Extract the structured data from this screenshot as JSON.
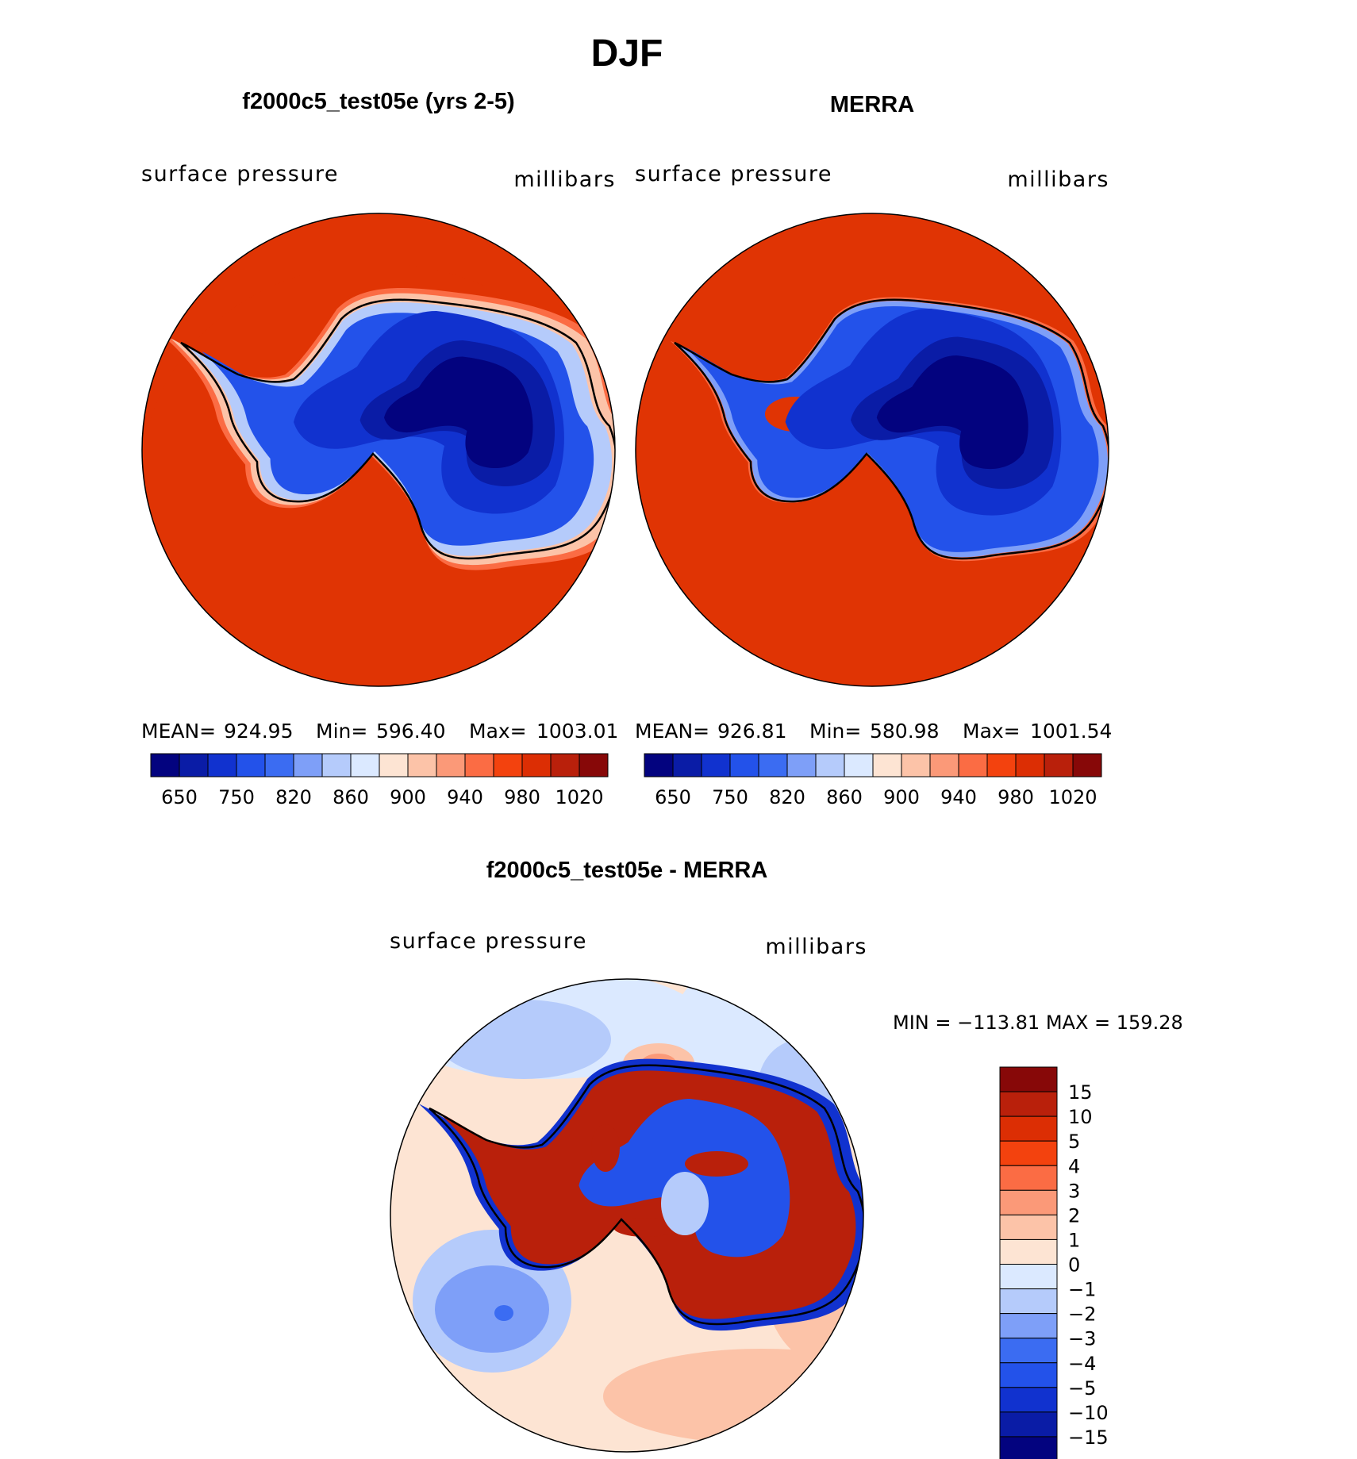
{
  "title": "DJF",
  "colors": {
    "ocean": "#e03404",
    "ocean_rim": "#c22b08",
    "coast": "#000000",
    "blue_deep": "#03037f",
    "blue_mid": "#1b3fe0",
    "blue_light": "#bcd6ff",
    "diff_land_red": "#b2180e",
    "diff_ocean_light": "#dbe9ff",
    "diff_ocean_peach": "#fbe4d4"
  },
  "chart_data": [
    {
      "type": "heatmap",
      "projection": "south polar stereographic",
      "title": "f2000c5_test05e (yrs 2-5)",
      "left_label": "surface pressure",
      "right_label": "millibars",
      "stats": {
        "mean_label": "MEAN=",
        "mean": "924.95",
        "min_label": "Min=",
        "min": "596.40",
        "max_label": "Max=",
        "max": "1003.01"
      },
      "colorbar": {
        "colors": [
          "#03037f",
          "#0a1ca6",
          "#1132cf",
          "#2352ea",
          "#3b6cf2",
          "#7e9ff8",
          "#b5cbfb",
          "#dbe9ff",
          "#fde4d3",
          "#fcc3a8",
          "#fb9978",
          "#fb6c44",
          "#f3420e",
          "#dc2e04",
          "#b9200b",
          "#870808"
        ],
        "tick_labels": [
          "650",
          "750",
          "820",
          "860",
          "900",
          "940",
          "980",
          "1020"
        ]
      }
    },
    {
      "type": "heatmap",
      "projection": "south polar stereographic",
      "title": "MERRA",
      "left_label": "surface pressure",
      "right_label": "millibars",
      "stats": {
        "mean_label": "MEAN=",
        "mean": "926.81",
        "min_label": "Min=",
        "min": "580.98",
        "max_label": "Max=",
        "max": "1001.54"
      },
      "colorbar": {
        "colors": [
          "#03037f",
          "#0a1ca6",
          "#1132cf",
          "#2352ea",
          "#3b6cf2",
          "#7e9ff8",
          "#b5cbfb",
          "#dbe9ff",
          "#fde4d3",
          "#fcc3a8",
          "#fb9978",
          "#fb6c44",
          "#f3420e",
          "#dc2e04",
          "#b9200b",
          "#870808"
        ],
        "tick_labels": [
          "650",
          "750",
          "820",
          "860",
          "900",
          "940",
          "980",
          "1020"
        ]
      }
    },
    {
      "type": "heatmap",
      "projection": "south polar stereographic",
      "title": "f2000c5_test05e - MERRA",
      "left_label": "surface pressure",
      "right_label": "millibars",
      "stats_text": "MIN = −113.81  MAX = 159.28",
      "colorbar": {
        "orientation": "vertical",
        "colors": [
          "#870808",
          "#b9200b",
          "#dc2e04",
          "#f3420e",
          "#fb6c44",
          "#fb9978",
          "#fcc3a8",
          "#fde4d3",
          "#dbe9ff",
          "#b5cbfb",
          "#7e9ff8",
          "#3b6cf2",
          "#2352ea",
          "#1132cf",
          "#0a1ca6",
          "#03037f"
        ],
        "tick_labels": [
          "15",
          "10",
          "5",
          "4",
          "3",
          "2",
          "1",
          "0",
          "−1",
          "−2",
          "−3",
          "−4",
          "−5",
          "−10",
          "−15"
        ]
      }
    }
  ]
}
